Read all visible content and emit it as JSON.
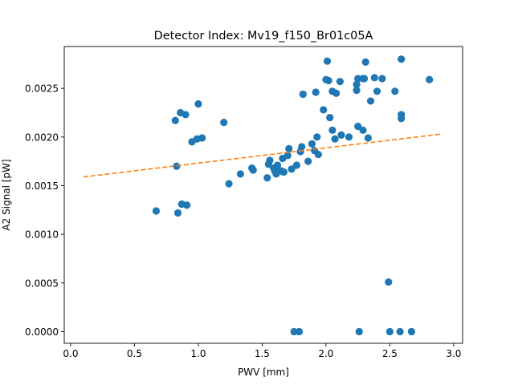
{
  "chart_data": {
    "type": "scatter",
    "title": "Detector Index: Mv19_f150_Br01c05A",
    "xlabel": "PWV [mm]",
    "ylabel": "A2 Signal [pW]",
    "xlim": [
      -0.05,
      3.07
    ],
    "ylim": [
      -0.00012,
      0.00293
    ],
    "xticks": [
      0.0,
      0.5,
      1.0,
      1.5,
      2.0,
      2.5,
      3.0
    ],
    "xtick_labels": [
      "0.0",
      "0.5",
      "1.0",
      "1.5",
      "2.0",
      "2.5",
      "3.0"
    ],
    "yticks": [
      0.0,
      0.0005,
      0.001,
      0.0015,
      0.002,
      0.0025
    ],
    "ytick_labels": [
      "0.0000",
      "0.0005",
      "0.0010",
      "0.0015",
      "0.0020",
      "0.0025"
    ],
    "grid": false,
    "series": [
      {
        "name": "data",
        "kind": "scatter",
        "color": "#1f77b4",
        "points": [
          [
            0.67,
            0.00124
          ],
          [
            0.82,
            0.00217
          ],
          [
            0.83,
            0.0017
          ],
          [
            0.84,
            0.00122
          ],
          [
            0.86,
            0.00225
          ],
          [
            0.87,
            0.00131
          ],
          [
            0.9,
            0.00223
          ],
          [
            0.91,
            0.0013
          ],
          [
            0.95,
            0.00195
          ],
          [
            0.99,
            0.00198
          ],
          [
            1.0,
            0.00234
          ],
          [
            1.03,
            0.00199
          ],
          [
            1.2,
            0.00215
          ],
          [
            1.24,
            0.00152
          ],
          [
            1.33,
            0.00162
          ],
          [
            1.42,
            0.00168
          ],
          [
            1.43,
            0.00166
          ],
          [
            1.54,
            0.00158
          ],
          [
            1.55,
            0.00172
          ],
          [
            1.56,
            0.00176
          ],
          [
            1.59,
            0.00168
          ],
          [
            1.6,
            0.00165
          ],
          [
            1.61,
            0.00162
          ],
          [
            1.62,
            0.00171
          ],
          [
            1.63,
            0.00166
          ],
          [
            1.65,
            0.00165
          ],
          [
            1.66,
            0.00178
          ],
          [
            1.67,
            0.00164
          ],
          [
            1.7,
            0.00181
          ],
          [
            1.71,
            0.00188
          ],
          [
            1.73,
            0.00167
          ],
          [
            1.75,
            0.0
          ],
          [
            1.77,
            0.00171
          ],
          [
            1.79,
            0.0
          ],
          [
            1.8,
            0.00185
          ],
          [
            1.81,
            0.0019
          ],
          [
            1.82,
            0.00244
          ],
          [
            1.86,
            0.00175
          ],
          [
            1.89,
            0.00193
          ],
          [
            1.91,
            0.00186
          ],
          [
            1.92,
            0.00246
          ],
          [
            1.93,
            0.002
          ],
          [
            1.94,
            0.00182
          ],
          [
            1.98,
            0.00228
          ],
          [
            2.0,
            0.00259
          ],
          [
            2.01,
            0.00278
          ],
          [
            2.02,
            0.00258
          ],
          [
            2.03,
            0.0022
          ],
          [
            2.05,
            0.00207
          ],
          [
            2.05,
            0.00247
          ],
          [
            2.07,
            0.00198
          ],
          [
            2.08,
            0.00245
          ],
          [
            2.11,
            0.00257
          ],
          [
            2.12,
            0.00202
          ],
          [
            2.18,
            0.002
          ],
          [
            2.24,
            0.00254
          ],
          [
            2.24,
            0.00248
          ],
          [
            2.25,
            0.0026
          ],
          [
            2.25,
            0.00211
          ],
          [
            2.26,
            0.0
          ],
          [
            2.29,
            0.0026
          ],
          [
            2.29,
            0.00207
          ],
          [
            2.3,
            0.0026
          ],
          [
            2.31,
            0.00277
          ],
          [
            2.33,
            0.00199
          ],
          [
            2.35,
            0.00237
          ],
          [
            2.38,
            0.00261
          ],
          [
            2.4,
            0.00247
          ],
          [
            2.44,
            0.0026
          ],
          [
            2.49,
            0.00051
          ],
          [
            2.5,
            0.0
          ],
          [
            2.54,
            0.00247
          ],
          [
            2.58,
            0.0
          ],
          [
            2.59,
            0.0028
          ],
          [
            2.59,
            0.00223
          ],
          [
            2.59,
            0.00219
          ],
          [
            2.67,
            0.0
          ],
          [
            2.81,
            0.00259
          ]
        ]
      },
      {
        "name": "fit",
        "kind": "dashed-line",
        "color": "#ff7f0e",
        "x": [
          0.1,
          2.9
        ],
        "y": [
          0.00159,
          0.00203
        ]
      }
    ]
  }
}
